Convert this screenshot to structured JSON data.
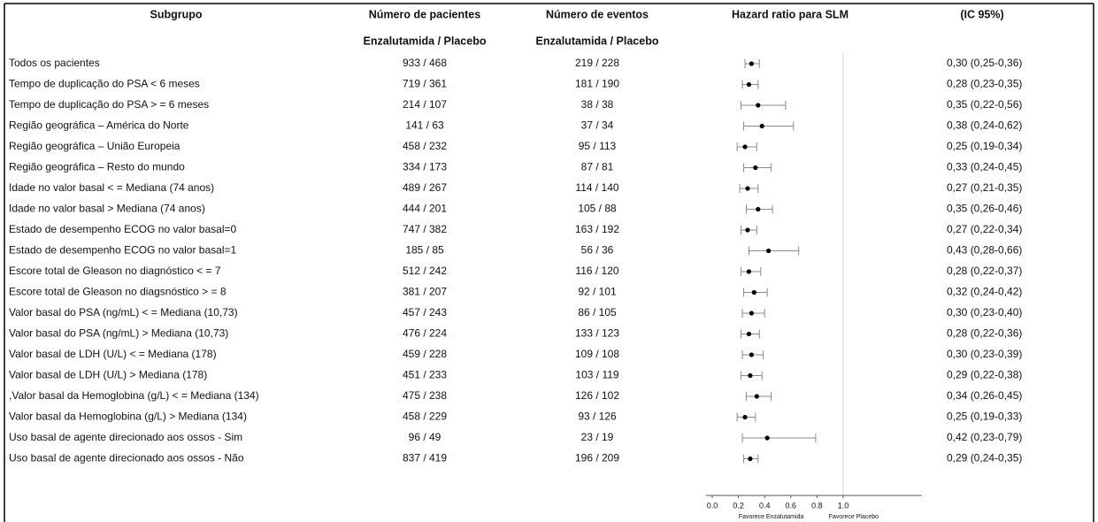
{
  "chart_data": {
    "type": "forest",
    "headers": {
      "subgroup": "Subgrupo",
      "patients": [
        "Número de pacientes",
        "Enzalutamida / Placebo"
      ],
      "events": [
        "Número de eventos",
        "Enzalutamida / Placebo"
      ],
      "hr": "Hazard ratio para SLM",
      "ci": "(IC 95%)"
    },
    "rows": [
      {
        "subgroup": "Todos os pacientes",
        "patients": "933 / 468",
        "events": "219 / 228",
        "estimate": 0.3,
        "lower": 0.25,
        "upper": 0.36,
        "label": "0,30 (0,25-0,36)"
      },
      {
        "subgroup": "Tempo de duplicação do PSA < 6 meses",
        "patients": "719 / 361",
        "events": "181 / 190",
        "estimate": 0.28,
        "lower": 0.23,
        "upper": 0.35,
        "label": "0,28 (0,23-0,35)"
      },
      {
        "subgroup": "Tempo de duplicação do PSA > = 6  meses",
        "patients": "214 / 107",
        "events": "38 / 38",
        "estimate": 0.35,
        "lower": 0.22,
        "upper": 0.56,
        "label": "0,35 (0,22-0,56)"
      },
      {
        "subgroup": "Região geográfica – América do Norte",
        "patients": "141 / 63",
        "events": "37 / 34",
        "estimate": 0.38,
        "lower": 0.24,
        "upper": 0.62,
        "label": "0,38 (0,24-0,62)"
      },
      {
        "subgroup": "Região geográfica – União Europeia",
        "patients": "458 / 232",
        "events": "95 / 113",
        "estimate": 0.25,
        "lower": 0.19,
        "upper": 0.34,
        "label": "0,25 (0,19-0,34)"
      },
      {
        "subgroup": "Região geográfica – Resto do mundo",
        "patients": "334 / 173",
        "events": "87 / 81",
        "estimate": 0.33,
        "lower": 0.24,
        "upper": 0.45,
        "label": "0,33 (0,24-0,45)"
      },
      {
        "subgroup": "Idade no valor basal < = Mediana (74 anos)",
        "patients": "489 / 267",
        "events": "114 / 140",
        "estimate": 0.27,
        "lower": 0.21,
        "upper": 0.35,
        "label": "0,27 (0,21-0,35)"
      },
      {
        "subgroup": "Idade no valor basal > Mediana (74 anos)",
        "patients": "444 / 201",
        "events": "105 / 88",
        "estimate": 0.35,
        "lower": 0.26,
        "upper": 0.46,
        "label": "0,35 (0,26-0,46)"
      },
      {
        "subgroup": "Estado de desempenho ECOG no valor basal=0",
        "patients": "747 / 382",
        "events": "163 / 192",
        "estimate": 0.27,
        "lower": 0.22,
        "upper": 0.34,
        "label": "0,27 (0,22-0,34)"
      },
      {
        "subgroup": "Estado de desempenho ECOG no valor basal=1",
        "patients": "185 / 85",
        "events": "56 / 36",
        "estimate": 0.43,
        "lower": 0.28,
        "upper": 0.66,
        "label": "0,43 (0,28-0,66)"
      },
      {
        "subgroup": "Escore total de Gleason no diagnóstico < = 7",
        "patients": "512 / 242",
        "events": "116 / 120",
        "estimate": 0.28,
        "lower": 0.22,
        "upper": 0.37,
        "label": "0,28 (0,22-0,37)"
      },
      {
        "subgroup": "Escore total de Gleason no diagsnóstico > = 8",
        "patients": "381 / 207",
        "events": "92 / 101",
        "estimate": 0.32,
        "lower": 0.24,
        "upper": 0.42,
        "label": "0,32 (0,24-0,42)"
      },
      {
        "subgroup": "Valor basal do PSA (ng/mL) < = Mediana (10,73)",
        "patients": "457 / 243",
        "events": "86 / 105",
        "estimate": 0.3,
        "lower": 0.23,
        "upper": 0.4,
        "label": "0,30 (0,23-0,40)"
      },
      {
        "subgroup": "Valor basal do PSA (ng/mL) > Mediana (10,73)",
        "patients": "476 / 224",
        "events": "133 / 123",
        "estimate": 0.28,
        "lower": 0.22,
        "upper": 0.36,
        "label": "0,28 (0,22-0,36)"
      },
      {
        "subgroup": "Valor basal de LDH (U/L) < = Mediana (178)",
        "patients": "459 / 228",
        "events": "109 / 108",
        "estimate": 0.3,
        "lower": 0.23,
        "upper": 0.39,
        "label": "0,30 (0,23-0,39)"
      },
      {
        "subgroup": "Valor basal de LDH (U/L) > Mediana (178)",
        "patients": "451 / 233",
        "events": "103 / 119",
        "estimate": 0.29,
        "lower": 0.22,
        "upper": 0.38,
        "label": "0,29 (0,22-0,38)"
      },
      {
        "subgroup": ",Valor basal da Hemoglobina (g/L) < = Mediana (134)",
        "patients": "475 / 238",
        "events": "126 / 102",
        "estimate": 0.34,
        "lower": 0.26,
        "upper": 0.45,
        "label": "0,34 (0,26-0,45)"
      },
      {
        "subgroup": "Valor basal da Hemoglobina (g/L) > Mediana (134)",
        "patients": "458 / 229",
        "events": "93 / 126",
        "estimate": 0.25,
        "lower": 0.19,
        "upper": 0.33,
        "label": "0,25 (0,19-0,33)"
      },
      {
        "subgroup": "Uso basal de agente direcionado aos ossos - Sim",
        "patients": "96 / 49",
        "events": "23 / 19",
        "estimate": 0.42,
        "lower": 0.23,
        "upper": 0.79,
        "label": "0,42 (0,23-0,79)"
      },
      {
        "subgroup": "Uso basal de agente direcionado aos ossos - Não",
        "patients": "837 / 419",
        "events": "196 / 209",
        "estimate": 0.29,
        "lower": 0.24,
        "upper": 0.35,
        "label": "0,29 (0,24-0,35)"
      }
    ],
    "xlim": [
      -0.05,
      1.6
    ],
    "xticks": [
      {
        "value": 0,
        "label": "0.0"
      },
      {
        "value": 0.2,
        "label": "0.2"
      },
      {
        "value": 0.4,
        "label": "0.4"
      },
      {
        "value": 0.6,
        "label": "0.6"
      },
      {
        "value": 0.8,
        "label": "0.8"
      },
      {
        "value": 1,
        "label": "1.0"
      }
    ],
    "reference_line": 1,
    "favors": [
      "Favorece Enzalutamida",
      "Favorece Placebo"
    ],
    "point_color": "#000000",
    "whisker_color": "#8a8a8a"
  }
}
